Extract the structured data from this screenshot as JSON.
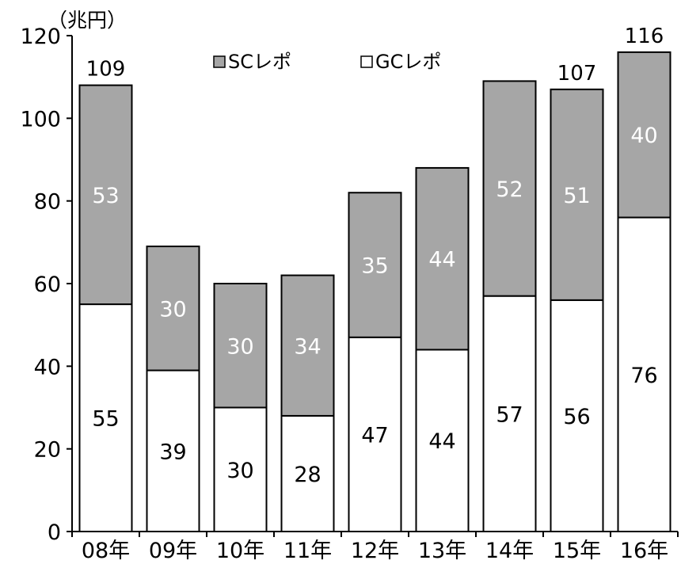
{
  "chart_data": {
    "type": "bar",
    "stacked": true,
    "unit": "（兆円）",
    "categories": [
      "08年",
      "09年",
      "10年",
      "11年",
      "12年",
      "13年",
      "14年",
      "15年",
      "16年"
    ],
    "series": [
      {
        "name": "GCレポ",
        "color": "#ffffff",
        "label_color": "#000000",
        "values": [
          55,
          39,
          30,
          28,
          47,
          44,
          57,
          56,
          76
        ]
      },
      {
        "name": "SCレポ",
        "color": "#a6a6a6",
        "label_color": "#ffffff",
        "values": [
          53,
          30,
          30,
          34,
          35,
          44,
          52,
          51,
          40
        ]
      }
    ],
    "totals": [
      "109",
      "",
      "",
      "",
      "",
      "",
      "",
      "107",
      "116"
    ],
    "ylim": [
      0,
      120
    ],
    "yticks": [
      "0",
      "20",
      "40",
      "60",
      "80",
      "100",
      "120"
    ],
    "legend": "top",
    "grid": false
  }
}
